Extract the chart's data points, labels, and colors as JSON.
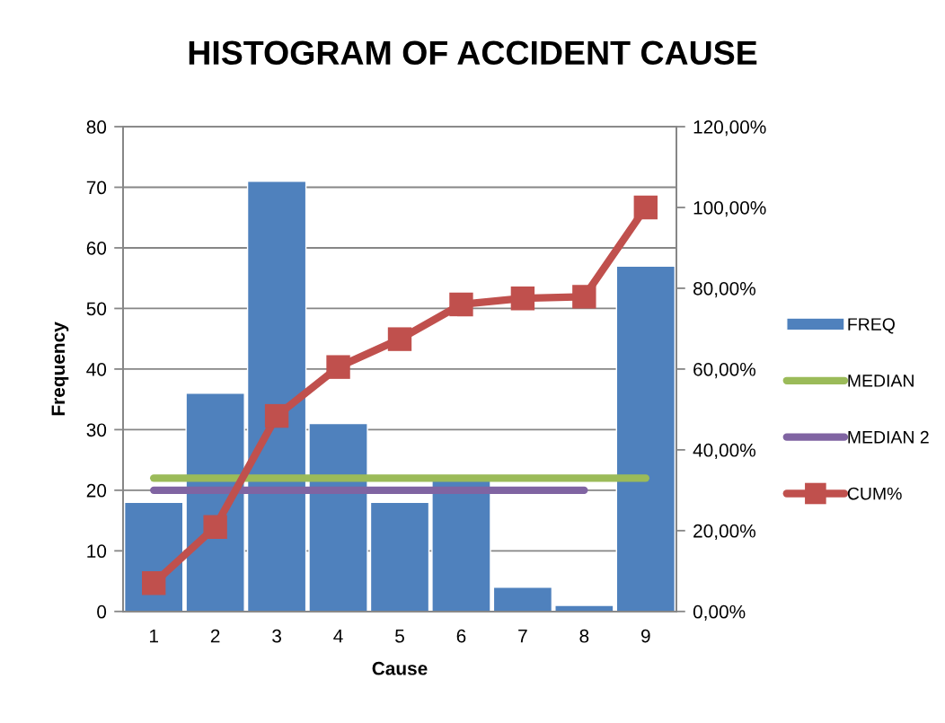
{
  "chart_data": {
    "type": "bar",
    "title": "HISTOGRAM OF ACCIDENT CAUSE",
    "xlabel": "Cause",
    "ylabel": "Frequency",
    "categories": [
      "1",
      "2",
      "3",
      "4",
      "5",
      "6",
      "7",
      "8",
      "9"
    ],
    "series": [
      {
        "name": "FREQ",
        "color": "#4f81bd",
        "values": [
          18,
          36,
          71,
          31,
          18,
          22,
          4,
          1,
          57
        ]
      },
      {
        "name": "MEDIAN",
        "type": "line",
        "color": "#9bbb59",
        "marker": "none",
        "values": [
          22,
          22,
          22,
          22,
          22,
          22,
          22,
          22,
          22
        ]
      },
      {
        "name": "MEDIAN 2",
        "type": "line",
        "color": "#8064a2",
        "marker": "none",
        "values": [
          20,
          20,
          20,
          20,
          20,
          20,
          20,
          20,
          null
        ]
      },
      {
        "name": "CUM%",
        "type": "line",
        "axis": "y2",
        "color": "#c0504d",
        "marker": "square",
        "values": [
          7.0,
          20.9,
          48.4,
          60.5,
          67.4,
          76.0,
          77.5,
          77.9,
          100
        ]
      }
    ],
    "ylim": [
      0,
      80
    ],
    "yticks": [
      0,
      10,
      20,
      30,
      40,
      50,
      60,
      70,
      80
    ],
    "y2lim": [
      0,
      120
    ],
    "y2ticks": [
      {
        "value": 0,
        "label": "0,00%"
      },
      {
        "value": 20,
        "label": "20,00%"
      },
      {
        "value": 40,
        "label": "40,00%"
      },
      {
        "value": 60,
        "label": "60,00%"
      },
      {
        "value": 80,
        "label": "80,00%"
      },
      {
        "value": 100,
        "label": "100,00%"
      },
      {
        "value": 120,
        "label": "120,00%"
      }
    ],
    "grid": "y",
    "legend": "right",
    "line_style": "solid"
  }
}
